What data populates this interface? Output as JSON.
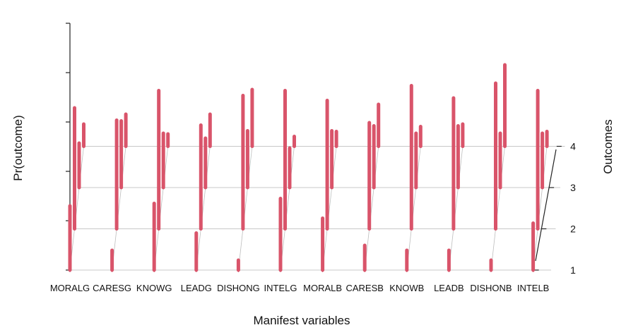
{
  "chart_data": {
    "type": "bar",
    "variant": "3d-stacked-depth-bars",
    "xlabel": "Manifest variables",
    "ylabel": "Pr(outcome)",
    "zlabel": "Outcomes",
    "categories": [
      "MORALG",
      "CARESG",
      "KNOWG",
      "LEADG",
      "DISHONG",
      "INTELG",
      "MORALB",
      "CARESB",
      "KNOWB",
      "LEADB",
      "DISHONB",
      "INTELB"
    ],
    "outcomes": [
      "1",
      "2",
      "3",
      "4"
    ],
    "ylim": [
      0,
      0.5
    ],
    "grid": true,
    "color": "#d9546a",
    "series": [
      {
        "name": "1",
        "values": [
          0.13,
          0.04,
          0.135,
          0.075,
          0.02,
          0.145,
          0.105,
          0.05,
          0.04,
          0.04,
          0.02,
          0.095
        ]
      },
      {
        "name": "2",
        "values": [
          0.245,
          0.22,
          0.28,
          0.21,
          0.27,
          0.28,
          0.26,
          0.215,
          0.29,
          0.265,
          0.295,
          0.28
        ]
      },
      {
        "name": "3",
        "values": [
          0.09,
          0.135,
          0.11,
          0.1,
          0.115,
          0.08,
          0.115,
          0.125,
          0.11,
          0.125,
          0.11,
          0.11
        ]
      },
      {
        "name": "4",
        "values": [
          0.045,
          0.065,
          0.025,
          0.065,
          0.115,
          0.02,
          0.03,
          0.085,
          0.04,
          0.045,
          0.165,
          0.03
        ]
      }
    ]
  }
}
